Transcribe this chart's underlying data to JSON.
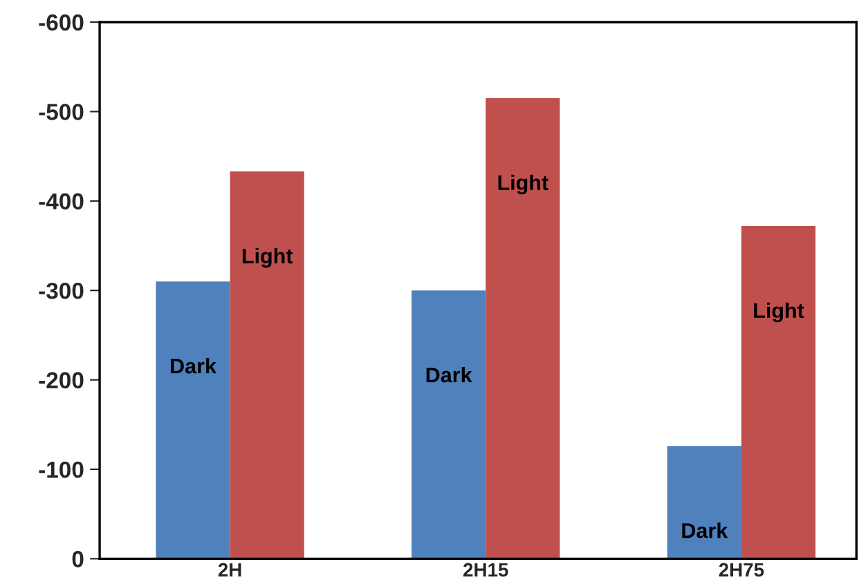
{
  "chart_data": {
    "type": "bar",
    "categories": [
      "2H",
      "2H15",
      "2H75"
    ],
    "series": [
      {
        "name": "Dark",
        "color": "#4f81bd",
        "values": [
          -310,
          -300,
          -126
        ]
      },
      {
        "name": "Light",
        "color": "#c0504d",
        "values": [
          -433,
          -515,
          -372
        ]
      }
    ],
    "ylim": [
      0,
      -600
    ],
    "yticks": [
      0,
      -100,
      -200,
      -300,
      -400,
      -500,
      -600
    ],
    "grid": false,
    "legend": false
  }
}
